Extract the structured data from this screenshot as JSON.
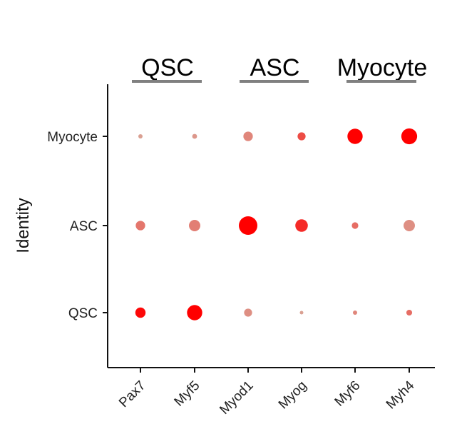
{
  "chart_data": {
    "type": "scatter",
    "subtype": "dot-plot",
    "xlabel": "",
    "ylabel": "Identity",
    "categories_x": [
      "Pax7",
      "Myf5",
      "Myod1",
      "Myog",
      "Myf6",
      "Myh4"
    ],
    "categories_y": [
      "Myocyte",
      "ASC",
      "QSC"
    ],
    "group_labels": [
      {
        "label": "QSC",
        "genes": [
          "Pax7",
          "Myf5"
        ]
      },
      {
        "label": "ASC",
        "genes": [
          "Myod1",
          "Myog"
        ]
      },
      {
        "label": "Myocyte",
        "genes": [
          "Myf6",
          "Myh4"
        ]
      }
    ],
    "size_meaning": "percent expressed (relative, 0-1)",
    "color_meaning": "average expression (relative, 0-1)",
    "color_scale": {
      "low": "#d8a89a",
      "high": "#ff0000"
    },
    "points": [
      {
        "gene": "Pax7",
        "identity": "Myocyte",
        "size": 0.02,
        "color": 0.05
      },
      {
        "gene": "Myf5",
        "identity": "Myocyte",
        "size": 0.03,
        "color": 0.1
      },
      {
        "gene": "Myod1",
        "identity": "Myocyte",
        "size": 0.18,
        "color": 0.2
      },
      {
        "gene": "Myog",
        "identity": "Myocyte",
        "size": 0.12,
        "color": 0.55
      },
      {
        "gene": "Myf6",
        "identity": "Myocyte",
        "size": 0.55,
        "color": 1.0
      },
      {
        "gene": "Myh4",
        "identity": "Myocyte",
        "size": 0.6,
        "color": 1.0
      },
      {
        "gene": "Pax7",
        "identity": "ASC",
        "size": 0.18,
        "color": 0.3
      },
      {
        "gene": "Myf5",
        "identity": "ASC",
        "size": 0.28,
        "color": 0.25
      },
      {
        "gene": "Myod1",
        "identity": "ASC",
        "size": 0.85,
        "color": 1.0
      },
      {
        "gene": "Myog",
        "identity": "ASC",
        "size": 0.35,
        "color": 0.75
      },
      {
        "gene": "Myf6",
        "identity": "ASC",
        "size": 0.07,
        "color": 0.35
      },
      {
        "gene": "Myh4",
        "identity": "ASC",
        "size": 0.28,
        "color": 0.15
      },
      {
        "gene": "Pax7",
        "identity": "QSC",
        "size": 0.22,
        "color": 0.95
      },
      {
        "gene": "Myf5",
        "identity": "QSC",
        "size": 0.55,
        "color": 1.0
      },
      {
        "gene": "Myod1",
        "identity": "QSC",
        "size": 0.12,
        "color": 0.15
      },
      {
        "gene": "Myog",
        "identity": "QSC",
        "size": 0.01,
        "color": 0.05
      },
      {
        "gene": "Myf6",
        "identity": "QSC",
        "size": 0.02,
        "color": 0.2
      },
      {
        "gene": "Myh4",
        "identity": "QSC",
        "size": 0.05,
        "color": 0.35
      }
    ],
    "grid": false,
    "legend": "none"
  }
}
